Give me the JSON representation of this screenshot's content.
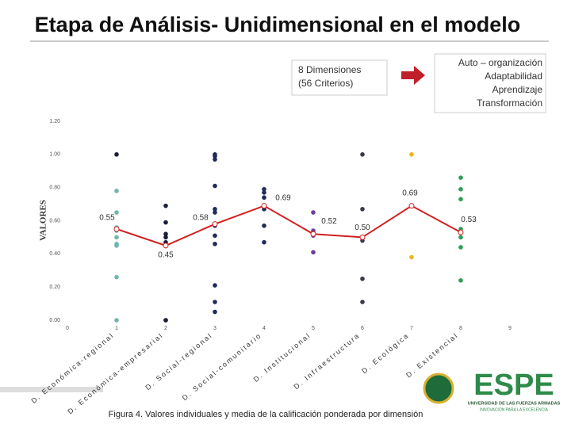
{
  "slide": {
    "title": "Etapa de Análisis- Unidimensional en el modelo",
    "box_left": [
      "8 Dimensiones",
      "(56 Criterios)"
    ],
    "box_right": [
      "Auto – organización",
      "Adaptabilidad",
      "Aprendizaje",
      "Transformación"
    ],
    "caption": "Figura 4. Valores individuales y media de la calificación ponderada por dimensión",
    "logo": {
      "name": "ESPE",
      "line1": "UNIVERSIDAD DE LAS FUERZAS ARMADAS",
      "line2": "INNOVACIÓN PARA LA EXCELENCIA"
    }
  },
  "chart_data": {
    "type": "scatter",
    "ylabel": "VALORES",
    "xlim": [
      0,
      9
    ],
    "ylim": [
      0,
      1.2
    ],
    "xticks": [
      0,
      1,
      2,
      3,
      4,
      5,
      6,
      7,
      8,
      9
    ],
    "yticks": [
      {
        "value": 0,
        "label": "0.00"
      },
      {
        "value": 0.2,
        "label": "0.20"
      },
      {
        "value": 0.4,
        "label": "0.40"
      },
      {
        "value": 0.6,
        "label": "0.60"
      },
      {
        "value": 0.8,
        "label": "0.80"
      },
      {
        "value": 1.0,
        "label": "1.00"
      },
      {
        "value": 1.2,
        "label": "1.20"
      }
    ],
    "categories": [
      "D. Económica-regional",
      "D. Económica-empresarial",
      "D. Social-regional",
      "D. Social-comunitario",
      "D. Institucional",
      "D. Infraestructura",
      "D. Ecológica",
      "D. Existencial"
    ],
    "series": [
      {
        "color": "#6fb5b0",
        "x": [
          1,
          1,
          1,
          1,
          1,
          1,
          1,
          1,
          1
        ],
        "values": [
          0.78,
          0.65,
          0.56,
          0.54,
          0.5,
          0.46,
          0.45,
          0.26,
          0
        ]
      },
      {
        "color": "#1a1f3a",
        "x": [
          1,
          2,
          2,
          2,
          2,
          2,
          2,
          2
        ],
        "values": [
          1.0,
          0.69,
          0.59,
          0.52,
          0.5,
          0.47,
          0,
          0
        ]
      },
      {
        "color": "#1f2a5c",
        "x": [
          3,
          3,
          3,
          3,
          3,
          3,
          3,
          3,
          3,
          3,
          3,
          3,
          4,
          4,
          4,
          4,
          4,
          4
        ],
        "values": [
          1.0,
          0.99,
          0.97,
          0.81,
          0.67,
          0.65,
          0.57,
          0.51,
          0.46,
          0.21,
          0.11,
          0.05,
          0.79,
          0.77,
          0.74,
          0.67,
          0.57,
          0.47
        ]
      },
      {
        "color": "#6a3d9a",
        "x": [
          5,
          5,
          5,
          5,
          5
        ],
        "values": [
          0.65,
          0.54,
          0.53,
          0.51,
          0.41
        ]
      },
      {
        "color": "#3a3a4a",
        "x": [
          6,
          6,
          6,
          6,
          6,
          6
        ],
        "values": [
          1.0,
          0.67,
          0.5,
          0.48,
          0.25,
          0.11
        ]
      },
      {
        "color": "#e6b820",
        "x": [
          7,
          7
        ],
        "values": [
          1.0,
          0.38
        ]
      },
      {
        "color": "#2e9e5a",
        "x": [
          8,
          8,
          8,
          8,
          8,
          8,
          8
        ],
        "values": [
          0.86,
          0.79,
          0.73,
          0.55,
          0.5,
          0.44,
          0.24
        ]
      }
    ],
    "mean": {
      "color": "#d42020",
      "x": [
        1,
        2,
        3,
        4,
        5,
        6,
        7,
        8
      ],
      "values": [
        0.55,
        0.45,
        0.58,
        0.69,
        0.52,
        0.5,
        0.69,
        0.53
      ],
      "value_labels": [
        "0.55",
        "0.45",
        "0.58",
        "0.69",
        "0.52",
        "0.50",
        "0.69",
        "0.53"
      ]
    }
  }
}
